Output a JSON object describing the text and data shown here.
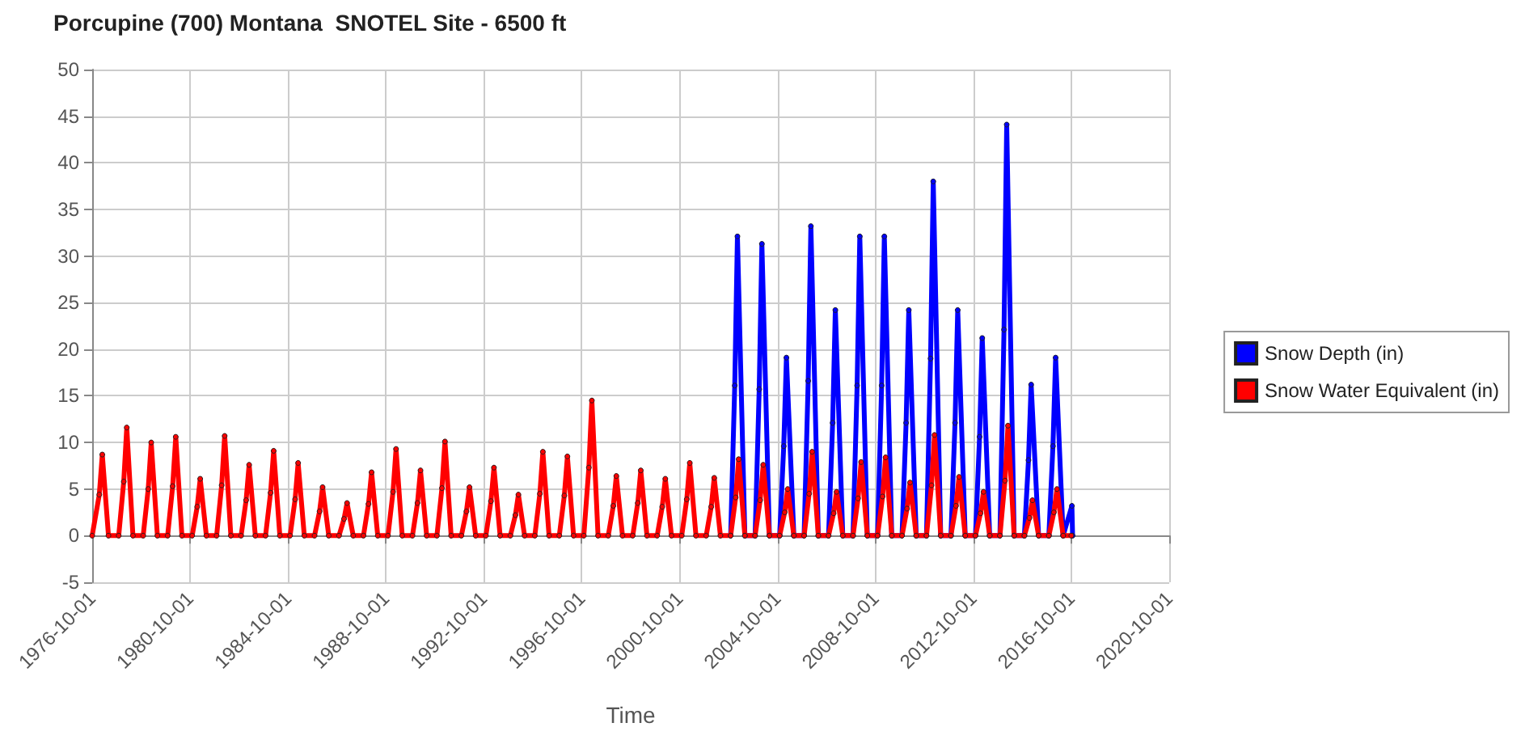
{
  "chart_data": {
    "type": "line",
    "title": "Porcupine (700) Montana  SNOTEL Site - 6500 ft",
    "xlabel": "Time",
    "xlim": [
      "1976-10-01",
      "2020-10-01"
    ],
    "xticks": [
      "1976-10-01",
      "1980-10-01",
      "1984-10-01",
      "1988-10-01",
      "1992-10-01",
      "1996-10-01",
      "2000-10-01",
      "2004-10-01",
      "2008-10-01",
      "2012-10-01",
      "2016-10-01",
      "2020-10-01"
    ],
    "ylim": [
      -5,
      50
    ],
    "yticks": [
      -5,
      0,
      5,
      10,
      15,
      20,
      25,
      30,
      35,
      40,
      45,
      50
    ],
    "grid": true,
    "legend": "right",
    "marker": "circle",
    "line_style": "solid",
    "series": [
      {
        "name": "Snow Depth (in)",
        "color": "#0000ff",
        "x": [
          "2002-11-01",
          "2003-01-01",
          "2003-02-10",
          "2003-06-01",
          "2003-11-01",
          "2004-01-01",
          "2004-02-10",
          "2004-06-01",
          "2004-11-01",
          "2005-01-01",
          "2005-02-10",
          "2005-06-01",
          "2005-11-01",
          "2006-01-01",
          "2006-02-10",
          "2006-06-01",
          "2006-11-01",
          "2007-01-01",
          "2007-02-10",
          "2007-06-01",
          "2007-11-01",
          "2008-01-01",
          "2008-02-10",
          "2008-06-01",
          "2008-11-01",
          "2009-01-01",
          "2009-02-10",
          "2009-06-01",
          "2009-11-01",
          "2010-01-01",
          "2010-02-10",
          "2010-06-01",
          "2010-11-01",
          "2011-01-01",
          "2011-02-10",
          "2011-06-01",
          "2011-11-01",
          "2012-01-01",
          "2012-02-10",
          "2012-06-01",
          "2012-11-01",
          "2013-01-01",
          "2013-02-10",
          "2013-06-01",
          "2013-11-01",
          "2014-01-01",
          "2014-02-10",
          "2014-06-01",
          "2014-11-01",
          "2015-01-01",
          "2015-02-10",
          "2015-06-01",
          "2015-11-01",
          "2016-01-01",
          "2016-02-10",
          "2016-06-01",
          "2016-10-10",
          "2016-10-20"
        ],
        "values": [
          0,
          16.1,
          32.1,
          0,
          0,
          15.7,
          31.3,
          0,
          0,
          9.6,
          19.1,
          0,
          0,
          16.6,
          33.2,
          0,
          0,
          12.1,
          24.2,
          0,
          0,
          16.1,
          32.1,
          0,
          0,
          16.1,
          32.1,
          0,
          0,
          12.1,
          24.2,
          0,
          0,
          19.0,
          38.0,
          0,
          0,
          12.1,
          24.2,
          0,
          0,
          10.6,
          21.2,
          0,
          0,
          22.1,
          44.1,
          0,
          0,
          8.1,
          16.2,
          0,
          0,
          9.6,
          19.1,
          0,
          3.2,
          0
        ]
      },
      {
        "name": "Snow Water Equivalent (in)",
        "color": "#ff0000",
        "x": [
          "1976-10-01",
          "1977-01-15",
          "1977-03-01",
          "1977-06-01",
          "1977-11-01",
          "1978-01-15",
          "1978-03-01",
          "1978-06-01",
          "1978-11-01",
          "1979-01-15",
          "1979-03-01",
          "1979-06-01",
          "1979-11-01",
          "1980-01-15",
          "1980-03-01",
          "1980-06-01",
          "1980-11-01",
          "1981-01-15",
          "1981-03-01",
          "1981-06-01",
          "1981-11-01",
          "1982-01-15",
          "1982-03-01",
          "1982-06-01",
          "1982-11-01",
          "1983-01-15",
          "1983-03-01",
          "1983-06-01",
          "1983-11-01",
          "1984-01-15",
          "1984-03-01",
          "1984-06-01",
          "1984-11-01",
          "1985-01-15",
          "1985-03-01",
          "1985-06-01",
          "1985-11-01",
          "1986-01-15",
          "1986-03-01",
          "1986-06-01",
          "1986-11-01",
          "1987-01-15",
          "1987-03-01",
          "1987-06-01",
          "1987-11-01",
          "1988-01-15",
          "1988-03-01",
          "1988-06-01",
          "1988-11-01",
          "1989-01-15",
          "1989-03-01",
          "1989-06-01",
          "1989-11-01",
          "1990-01-15",
          "1990-03-01",
          "1990-06-01",
          "1990-11-01",
          "1991-01-15",
          "1991-03-01",
          "1991-06-01",
          "1991-11-01",
          "1992-01-15",
          "1992-03-01",
          "1992-06-01",
          "1992-11-01",
          "1993-01-15",
          "1993-03-01",
          "1993-06-01",
          "1993-11-01",
          "1994-01-15",
          "1994-03-01",
          "1994-06-01",
          "1994-11-01",
          "1995-01-15",
          "1995-03-01",
          "1995-06-01",
          "1995-11-01",
          "1996-01-15",
          "1996-03-01",
          "1996-06-01",
          "1996-11-01",
          "1997-01-15",
          "1997-03-01",
          "1997-06-01",
          "1997-11-01",
          "1998-01-15",
          "1998-03-01",
          "1998-06-01",
          "1998-11-01",
          "1999-01-15",
          "1999-03-01",
          "1999-06-01",
          "1999-11-01",
          "2000-01-15",
          "2000-03-01",
          "2000-06-01",
          "2000-11-01",
          "2001-01-15",
          "2001-03-01",
          "2001-06-01",
          "2001-11-01",
          "2002-01-15",
          "2002-03-01",
          "2002-06-01",
          "2002-11-01",
          "2003-01-15",
          "2003-03-01",
          "2003-06-01",
          "2003-11-01",
          "2004-01-15",
          "2004-03-01",
          "2004-06-01",
          "2004-11-01",
          "2005-01-15",
          "2005-03-01",
          "2005-06-01",
          "2005-11-01",
          "2006-01-15",
          "2006-03-01",
          "2006-06-01",
          "2006-11-01",
          "2007-01-15",
          "2007-03-01",
          "2007-06-01",
          "2007-11-01",
          "2008-01-15",
          "2008-03-01",
          "2008-06-01",
          "2008-11-01",
          "2009-01-15",
          "2009-03-01",
          "2009-06-01",
          "2009-11-01",
          "2010-01-15",
          "2010-03-01",
          "2010-06-01",
          "2010-11-01",
          "2011-01-15",
          "2011-03-01",
          "2011-06-01",
          "2011-11-01",
          "2012-01-15",
          "2012-03-01",
          "2012-06-01",
          "2012-11-01",
          "2013-01-15",
          "2013-03-01",
          "2013-06-01",
          "2013-11-01",
          "2014-01-15",
          "2014-03-01",
          "2014-06-01",
          "2014-11-01",
          "2015-01-15",
          "2015-03-01",
          "2015-06-01",
          "2015-11-01",
          "2016-01-15",
          "2016-03-01",
          "2016-06-01",
          "2016-10-01"
        ],
        "values": [
          0,
          4.4,
          8.7,
          0,
          0,
          5.8,
          11.6,
          0,
          0,
          5.0,
          10.0,
          0,
          0,
          5.3,
          10.6,
          0,
          0,
          3.1,
          6.1,
          0,
          0,
          5.4,
          10.7,
          0,
          0,
          3.8,
          7.6,
          0,
          0,
          4.6,
          9.1,
          0,
          0,
          3.9,
          7.8,
          0,
          0,
          2.6,
          5.2,
          0,
          0,
          1.8,
          3.5,
          0,
          0,
          3.4,
          6.8,
          0,
          0,
          4.7,
          9.3,
          0,
          0,
          3.5,
          7.0,
          0,
          0,
          5.1,
          10.1,
          0,
          0,
          2.6,
          5.2,
          0,
          0,
          3.7,
          7.3,
          0,
          0,
          2.2,
          4.4,
          0,
          0,
          4.5,
          9.0,
          0,
          0,
          4.3,
          8.5,
          0,
          0,
          7.3,
          14.5,
          0,
          0,
          3.2,
          6.4,
          0,
          0,
          3.5,
          7.0,
          0,
          0,
          3.1,
          6.1,
          0,
          0,
          3.9,
          7.8,
          0,
          0,
          3.1,
          6.2,
          0,
          0,
          4.1,
          8.2,
          0,
          0,
          3.8,
          7.6,
          0,
          0,
          2.5,
          5.0,
          0,
          0,
          4.5,
          9.0,
          0,
          0,
          2.4,
          4.7,
          0,
          0,
          4.0,
          7.9,
          0,
          0,
          4.2,
          8.4,
          0,
          0,
          2.9,
          5.7,
          0,
          0,
          5.4,
          10.8,
          0,
          0,
          3.2,
          6.3,
          0,
          0,
          2.4,
          4.7,
          0,
          0,
          5.9,
          11.8,
          0,
          0,
          1.9,
          3.8,
          0,
          0,
          2.5,
          5.0,
          0,
          0
        ]
      }
    ]
  }
}
